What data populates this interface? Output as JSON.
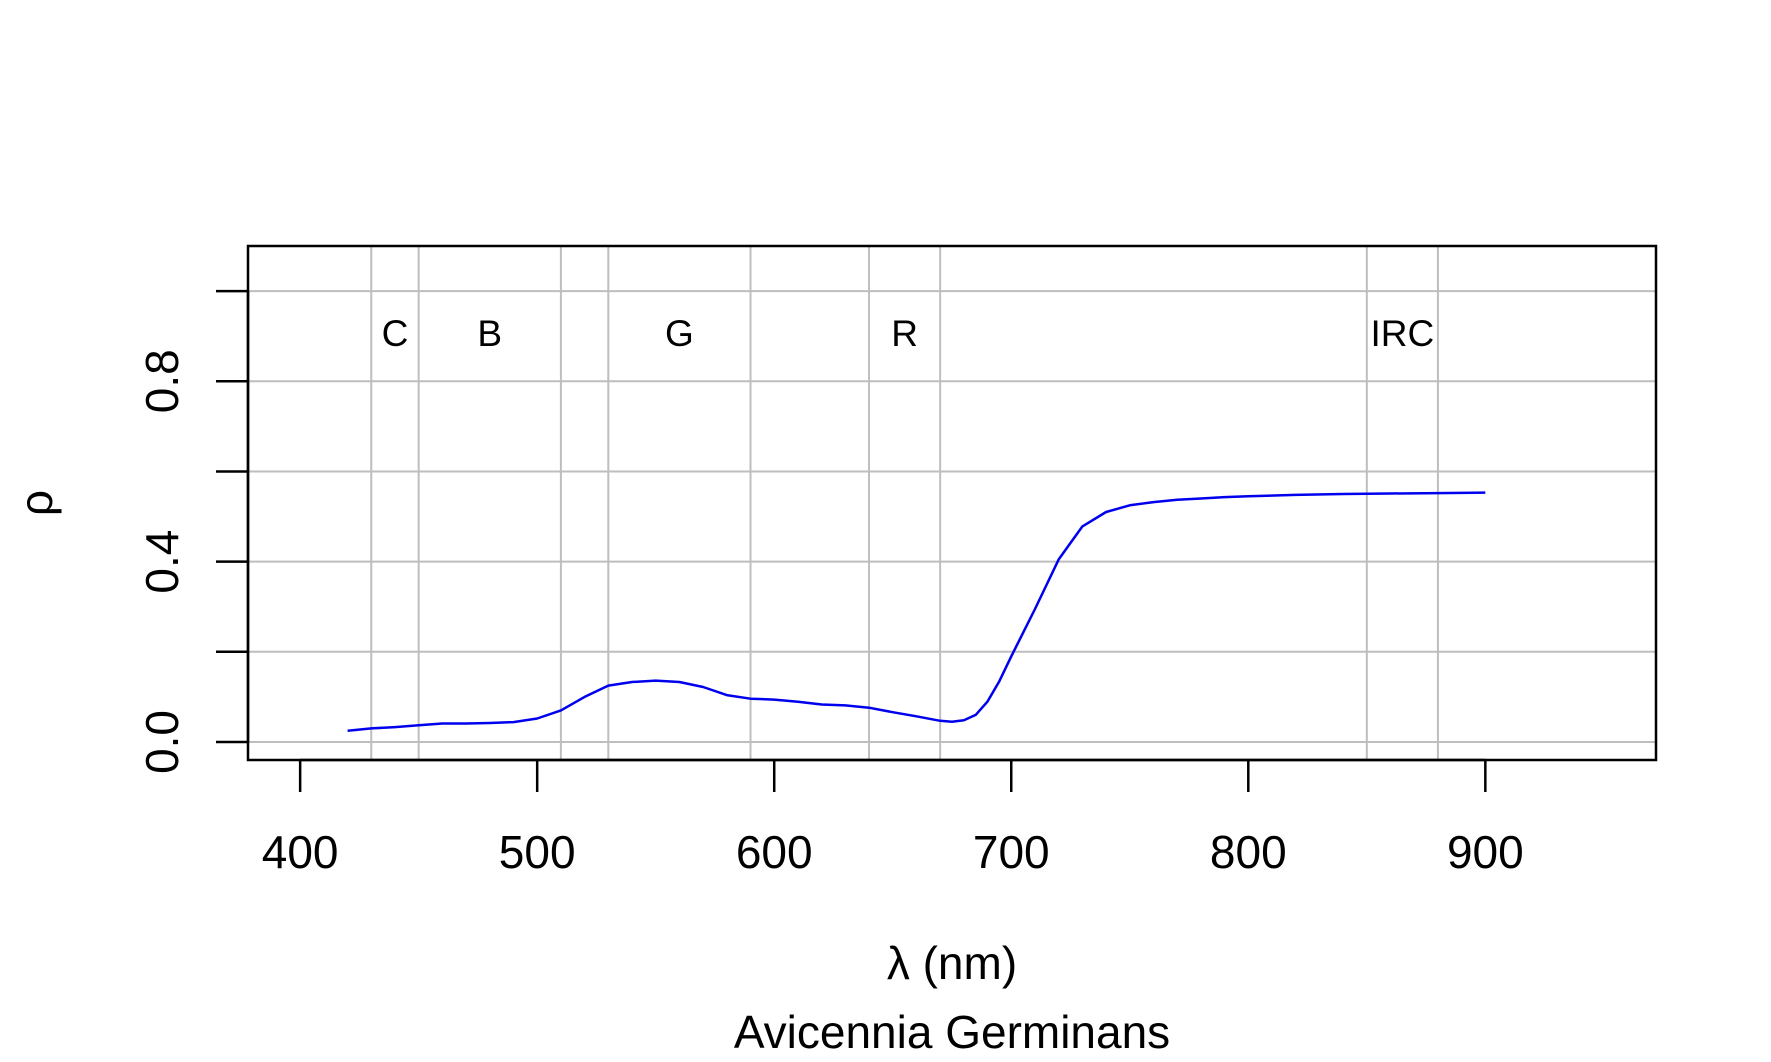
{
  "chart_data": {
    "type": "line",
    "title": "",
    "subtitle": "Avicennia Germinans",
    "xlabel": "λ (nm)",
    "ylabel": "ρ",
    "xlim": [
      378,
      972
    ],
    "ylim": [
      -0.04,
      1.1
    ],
    "grid": true,
    "x_ticks": [
      400,
      500,
      600,
      700,
      800,
      900
    ],
    "x_tick_labels": [
      "400",
      "500",
      "600",
      "700",
      "800",
      "900"
    ],
    "y_ticks": [
      0,
      0.2,
      0.4,
      0.6,
      0.8,
      1.0
    ],
    "y_tick_labels": [
      "0.0",
      "",
      "0.4",
      "",
      "0.8",
      ""
    ],
    "band_lines": [
      430,
      450,
      510,
      530,
      590,
      640,
      670,
      850,
      880
    ],
    "band_labels": [
      {
        "text": "C",
        "x": 440
      },
      {
        "text": "B",
        "x": 480
      },
      {
        "text": "G",
        "x": 560
      },
      {
        "text": "R",
        "x": 655
      },
      {
        "text": "IRC",
        "x": 865
      }
    ],
    "band_label_y": 0.9,
    "line_color": "#0000ee",
    "grid_color": "#bebebe",
    "series": [
      {
        "x": [
          420,
          430,
          440,
          450,
          460,
          470,
          480,
          490,
          500,
          510,
          520,
          530,
          540,
          550,
          560,
          570,
          580,
          590,
          600,
          610,
          620,
          630,
          640,
          650,
          660,
          670,
          675,
          680,
          685,
          690,
          695,
          700,
          710,
          720,
          730,
          740,
          750,
          760,
          770,
          780,
          790,
          800,
          820,
          840,
          860,
          880,
          900
        ],
        "y": [
          0.025,
          0.03,
          0.033,
          0.037,
          0.041,
          0.041,
          0.042,
          0.044,
          0.052,
          0.07,
          0.1,
          0.125,
          0.133,
          0.136,
          0.133,
          0.122,
          0.104,
          0.096,
          0.094,
          0.089,
          0.083,
          0.081,
          0.076,
          0.066,
          0.057,
          0.047,
          0.045,
          0.048,
          0.06,
          0.09,
          0.135,
          0.19,
          0.295,
          0.405,
          0.478,
          0.51,
          0.525,
          0.532,
          0.537,
          0.54,
          0.543,
          0.545,
          0.548,
          0.55,
          0.551,
          0.552,
          0.553
        ]
      }
    ]
  }
}
